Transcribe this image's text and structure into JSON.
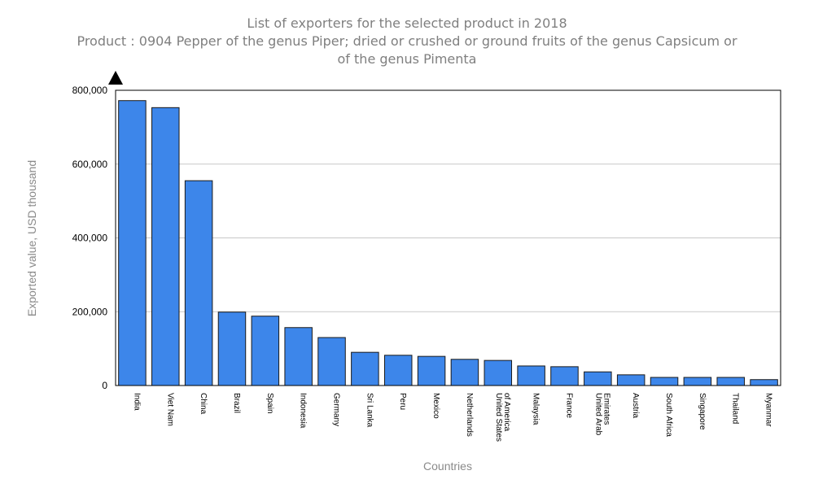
{
  "chart_data": {
    "type": "bar",
    "title": "List of exporters for the selected product in 2018",
    "subtitle_lines": [
      "Product : 0904 Pepper of the genus Piper; dried or crushed or ground fruits of the genus Capsicum or",
      "of the genus Pimenta"
    ],
    "xlabel": "Countries",
    "ylabel": "Exported value, USD thousand",
    "ylim": [
      0,
      800000
    ],
    "yticks": [
      0,
      200000,
      400000,
      600000,
      800000
    ],
    "ytick_labels": [
      "0",
      "200,000",
      "400,000",
      "600,000",
      "800,000"
    ],
    "grid": true,
    "bar_color": "#3d86ea",
    "categories": [
      [
        "India"
      ],
      [
        "Viet Nam"
      ],
      [
        "China"
      ],
      [
        "Brazil"
      ],
      [
        "Spain"
      ],
      [
        "Indonesia"
      ],
      [
        "Germany"
      ],
      [
        "Sri Lanka"
      ],
      [
        "Peru"
      ],
      [
        "Mexico"
      ],
      [
        "Netherlands"
      ],
      [
        "United States",
        "of America"
      ],
      [
        "Malaysia"
      ],
      [
        "France"
      ],
      [
        "United Arab",
        "Emirates"
      ],
      [
        "Austria"
      ],
      [
        "South Africa"
      ],
      [
        "Singapore"
      ],
      [
        "Thailand"
      ],
      [
        "Myanmar"
      ]
    ],
    "values": [
      772000,
      753000,
      555000,
      199000,
      188000,
      157000,
      130000,
      90000,
      82000,
      79000,
      71000,
      68000,
      53000,
      51000,
      37000,
      29000,
      22000,
      22000,
      22000,
      16000
    ]
  }
}
